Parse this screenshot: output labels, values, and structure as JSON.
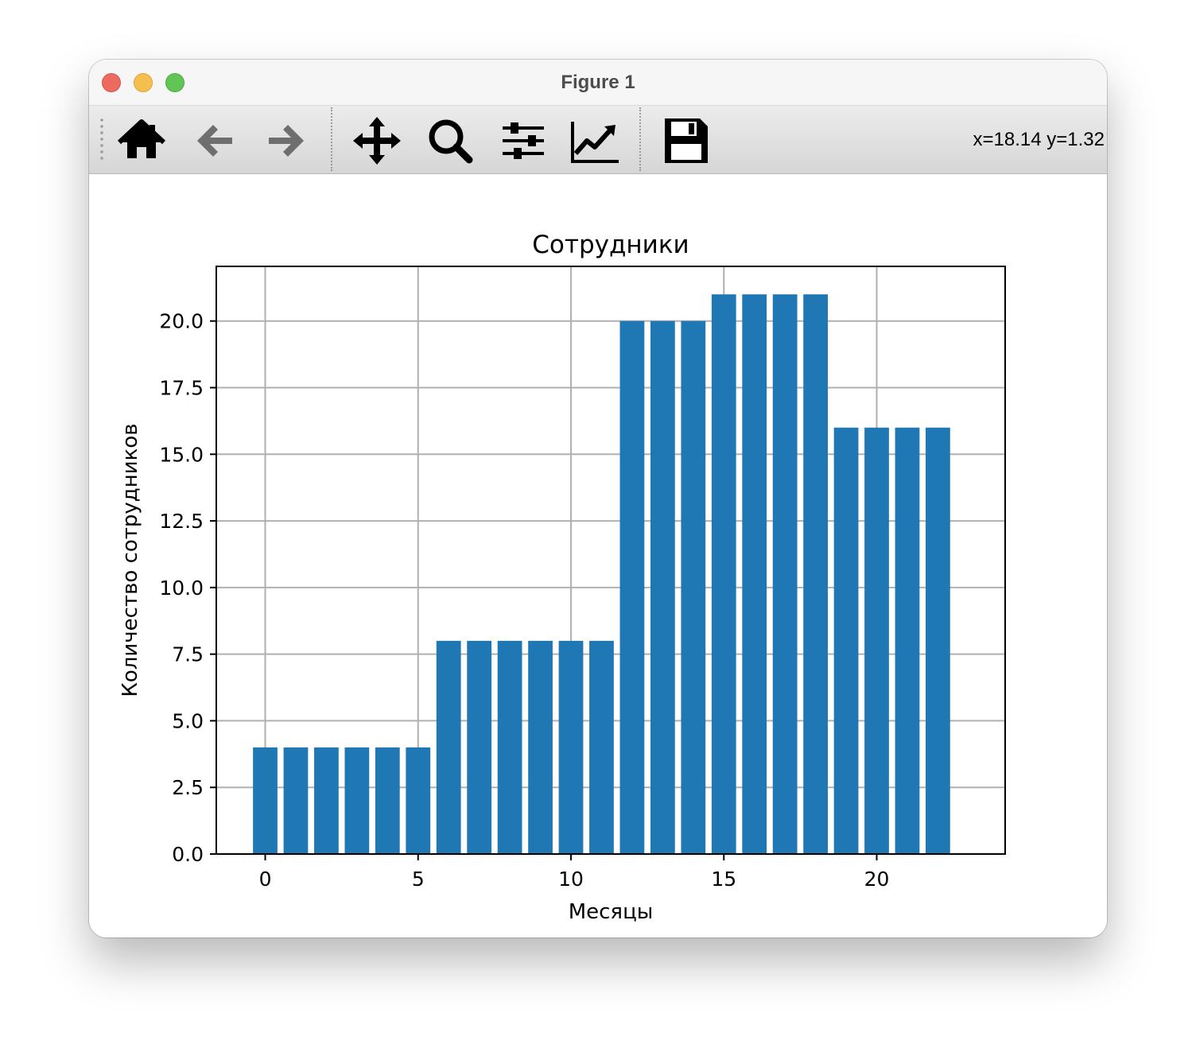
{
  "window": {
    "title": "Figure 1"
  },
  "toolbar": {
    "buttons": [
      {
        "name": "home-button",
        "icon": "home-icon"
      },
      {
        "name": "back-button",
        "icon": "arrow-left-icon"
      },
      {
        "name": "forward-button",
        "icon": "arrow-right-icon"
      },
      {
        "name": "pan-button",
        "icon": "move-icon"
      },
      {
        "name": "zoom-button",
        "icon": "magnifier-icon"
      },
      {
        "name": "subplots-button",
        "icon": "sliders-icon"
      },
      {
        "name": "edit-axes-button",
        "icon": "line-chart-icon"
      },
      {
        "name": "save-button",
        "icon": "floppy-disk-icon"
      }
    ],
    "coordinates": "x=18.14 y=1.32"
  },
  "chart_data": {
    "type": "bar",
    "title": "Сотрудники",
    "xlabel": "Месяцы",
    "ylabel": "Количество сотрудников",
    "x": [
      0,
      1,
      2,
      3,
      4,
      5,
      6,
      7,
      8,
      9,
      10,
      11,
      12,
      13,
      14,
      15,
      16,
      17,
      18,
      19,
      20,
      21,
      22
    ],
    "values": [
      4,
      4,
      4,
      4,
      4,
      4,
      8,
      8,
      8,
      8,
      8,
      8,
      20,
      20,
      20,
      21,
      21,
      21,
      21,
      16,
      16,
      16,
      16
    ],
    "xlim": [
      -1.6,
      24.2
    ],
    "ylim": [
      0,
      22.05
    ],
    "xticks": [
      0,
      5,
      10,
      15,
      20
    ],
    "xtick_labels": [
      "0",
      "5",
      "10",
      "15",
      "20"
    ],
    "yticks": [
      0,
      2.5,
      5,
      7.5,
      10,
      12.5,
      15,
      17.5,
      20
    ],
    "ytick_labels": [
      "0.0",
      "2.5",
      "5.0",
      "7.5",
      "10.0",
      "12.5",
      "15.0",
      "17.5",
      "20.0"
    ],
    "grid": true,
    "bar_color": "#1f77b4"
  }
}
